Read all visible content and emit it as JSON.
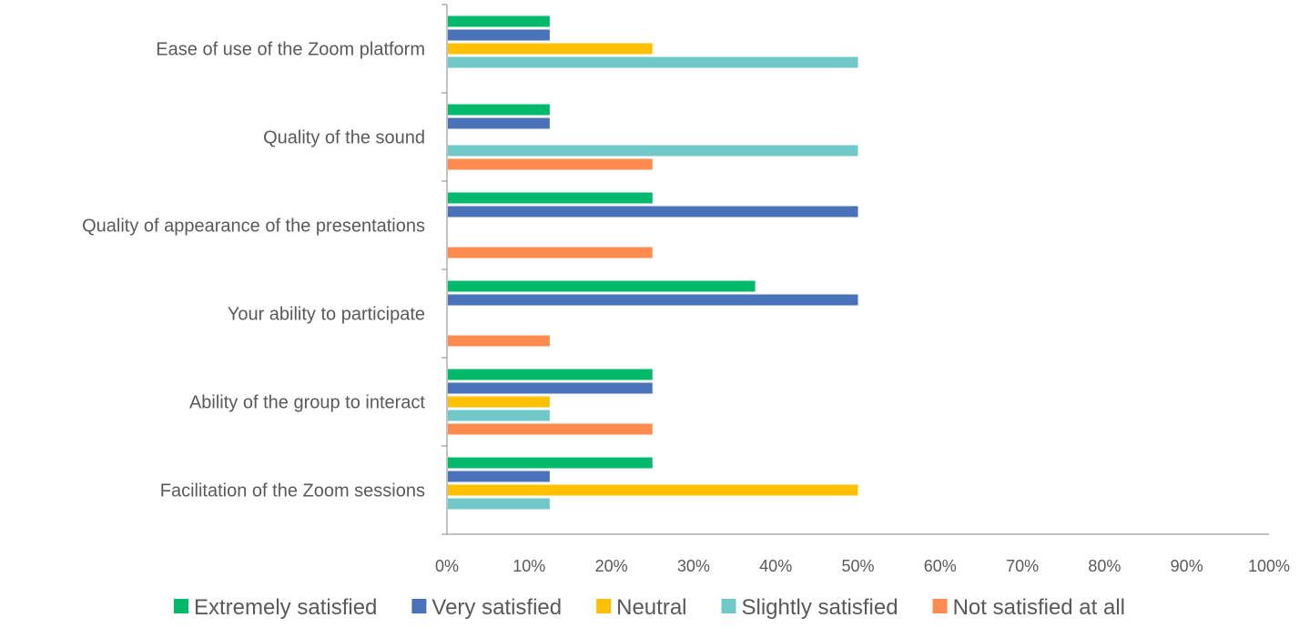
{
  "chart_data": {
    "type": "bar",
    "orientation": "horizontal",
    "categories": [
      "Ease of use of the Zoom platform",
      "Quality of the sound",
      "Quality of appearance of the presentations",
      "Your ability to participate",
      "Ability of the group to interact",
      "Facilitation of the Zoom sessions"
    ],
    "series": [
      {
        "name": "Extremely satisfied",
        "color": "#00b96b",
        "values": [
          12.5,
          12.5,
          25,
          37.5,
          25,
          25
        ]
      },
      {
        "name": "Very satisfied",
        "color": "#4a72b8",
        "values": [
          12.5,
          12.5,
          50,
          50,
          25,
          12.5
        ]
      },
      {
        "name": "Neutral",
        "color": "#ffc000",
        "values": [
          25,
          0,
          0,
          0,
          12.5,
          50
        ]
      },
      {
        "name": "Slightly satisfied",
        "color": "#70c8c8",
        "values": [
          50,
          50,
          0,
          0,
          12.5,
          12.5
        ]
      },
      {
        "name": "Not satisfied at all",
        "color": "#ff8b4f",
        "values": [
          0,
          25,
          25,
          12.5,
          25,
          0
        ]
      }
    ],
    "xlim": [
      0,
      100
    ],
    "xticks": [
      "0%",
      "10%",
      "20%",
      "30%",
      "40%",
      "50%",
      "60%",
      "70%",
      "80%",
      "90%",
      "100%"
    ],
    "grid": false,
    "legend": "bottom",
    "title": "",
    "xlabel": "",
    "ylabel": ""
  }
}
